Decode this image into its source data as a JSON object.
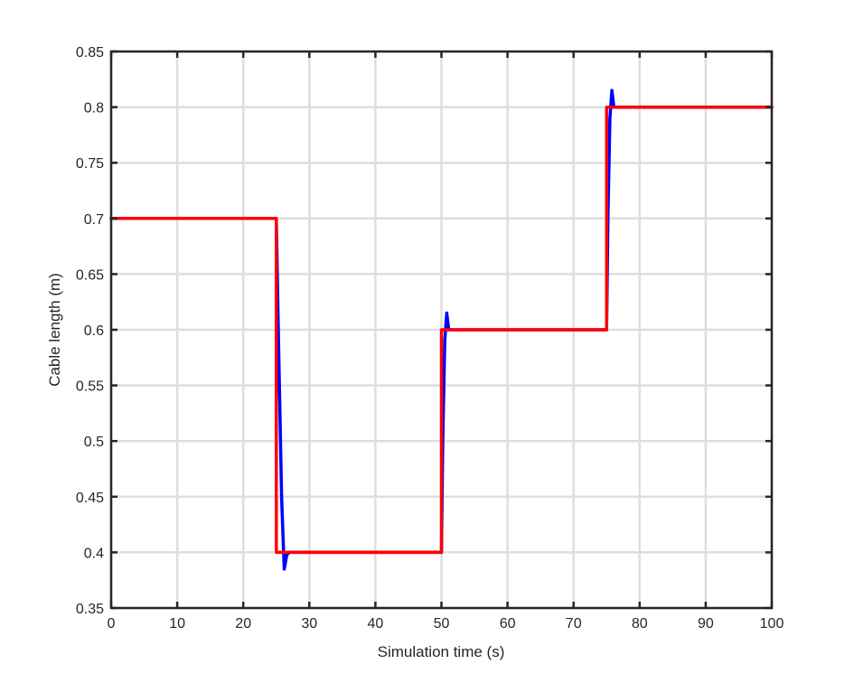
{
  "chart_data": {
    "type": "line",
    "title": "",
    "xlabel": "Simulation time (s)",
    "ylabel": "Cable length (m)",
    "xlim": [
      0,
      100
    ],
    "ylim": [
      0.35,
      0.85
    ],
    "xticks": [
      0,
      10,
      20,
      30,
      40,
      50,
      60,
      70,
      80,
      90,
      100
    ],
    "yticks": [
      0.35,
      0.4,
      0.45,
      0.5,
      0.55,
      0.6,
      0.65,
      0.7,
      0.75,
      0.8,
      0.85
    ],
    "xtick_labels": [
      "0",
      "10",
      "20",
      "30",
      "40",
      "50",
      "60",
      "70",
      "80",
      "90",
      "100"
    ],
    "ytick_labels": [
      "0.35",
      "0.4",
      "0.45",
      "0.5",
      "0.55",
      "0.6",
      "0.65",
      "0.7",
      "0.75",
      "0.8",
      "0.85"
    ],
    "grid": true,
    "legend": "none",
    "series": [
      {
        "color": "#0000ff",
        "x": [
          0,
          25,
          25.3,
          25.8,
          26.2,
          26.6,
          27,
          50,
          50.2,
          50.5,
          50.8,
          51.1,
          51.5,
          75,
          75.2,
          75.5,
          75.8,
          76.1,
          76.5,
          100
        ],
        "y": [
          0.7,
          0.7,
          0.6,
          0.45,
          0.385,
          0.398,
          0.4,
          0.4,
          0.5,
          0.59,
          0.615,
          0.6,
          0.6,
          0.6,
          0.7,
          0.79,
          0.815,
          0.8,
          0.8,
          0.8
        ]
      },
      {
        "color": "#ff0000",
        "x": [
          0,
          25,
          25,
          50,
          50,
          75,
          75,
          100
        ],
        "y": [
          0.7,
          0.7,
          0.4,
          0.4,
          0.6,
          0.6,
          0.8,
          0.8
        ]
      }
    ]
  }
}
